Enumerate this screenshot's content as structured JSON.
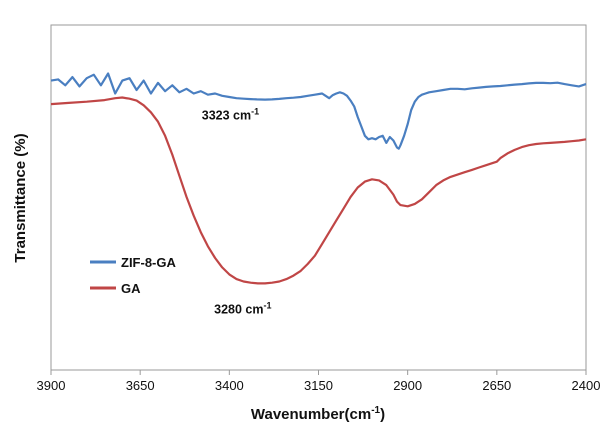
{
  "chart_data": {
    "type": "line",
    "xlabel": "Wavenumber(cm",
    "xlabel_sup": "-1",
    "xlabel_close": ")",
    "ylabel": "Transmittance (%)",
    "xlim": [
      3900,
      2400
    ],
    "x_reversed": true,
    "ylim": [
      0,
      1
    ],
    "y_ticks_shown": false,
    "grid": false,
    "legend_position": "left-middle",
    "xticks": [
      3900,
      3650,
      3400,
      3150,
      2900,
      2650,
      2400
    ],
    "series": [
      {
        "name": "ZIF-8-GA",
        "color": "#4a7fc1",
        "x": [
          3900,
          3880,
          3860,
          3840,
          3820,
          3800,
          3780,
          3760,
          3740,
          3720,
          3700,
          3680,
          3660,
          3640,
          3620,
          3600,
          3580,
          3560,
          3540,
          3520,
          3500,
          3480,
          3460,
          3440,
          3420,
          3400,
          3380,
          3360,
          3340,
          3323,
          3300,
          3280,
          3260,
          3240,
          3220,
          3200,
          3180,
          3160,
          3140,
          3130,
          3120,
          3110,
          3100,
          3090,
          3080,
          3070,
          3060,
          3050,
          3040,
          3030,
          3020,
          3010,
          3000,
          2990,
          2980,
          2970,
          2960,
          2950,
          2940,
          2930,
          2925,
          2920,
          2910,
          2900,
          2890,
          2880,
          2870,
          2860,
          2850,
          2840,
          2820,
          2800,
          2780,
          2760,
          2740,
          2720,
          2700,
          2680,
          2660,
          2640,
          2620,
          2600,
          2580,
          2560,
          2540,
          2520,
          2500,
          2480,
          2460,
          2440,
          2420,
          2400
        ],
        "y": [
          0.955,
          0.96,
          0.935,
          0.97,
          0.93,
          0.965,
          0.98,
          0.935,
          0.985,
          0.9,
          0.955,
          0.965,
          0.915,
          0.955,
          0.9,
          0.945,
          0.91,
          0.935,
          0.905,
          0.92,
          0.9,
          0.91,
          0.895,
          0.9,
          0.89,
          0.885,
          0.88,
          0.878,
          0.876,
          0.875,
          0.874,
          0.875,
          0.877,
          0.88,
          0.882,
          0.885,
          0.89,
          0.895,
          0.9,
          0.89,
          0.88,
          0.893,
          0.9,
          0.905,
          0.9,
          0.89,
          0.87,
          0.845,
          0.8,
          0.76,
          0.72,
          0.705,
          0.71,
          0.705,
          0.715,
          0.72,
          0.69,
          0.715,
          0.7,
          0.67,
          0.665,
          0.68,
          0.72,
          0.77,
          0.83,
          0.865,
          0.885,
          0.895,
          0.9,
          0.905,
          0.91,
          0.915,
          0.92,
          0.92,
          0.918,
          0.922,
          0.925,
          0.928,
          0.93,
          0.932,
          0.935,
          0.938,
          0.94,
          0.943,
          0.945,
          0.945,
          0.944,
          0.946,
          0.94,
          0.935,
          0.93,
          0.94
        ]
      },
      {
        "name": "GA",
        "color": "#c04646",
        "x": [
          3900,
          3850,
          3800,
          3750,
          3720,
          3700,
          3680,
          3660,
          3640,
          3620,
          3600,
          3580,
          3560,
          3540,
          3520,
          3500,
          3480,
          3460,
          3440,
          3420,
          3400,
          3380,
          3360,
          3340,
          3320,
          3300,
          3280,
          3260,
          3240,
          3220,
          3200,
          3180,
          3160,
          3140,
          3120,
          3100,
          3080,
          3060,
          3040,
          3020,
          3000,
          2980,
          2960,
          2940,
          2930,
          2920,
          2900,
          2880,
          2860,
          2840,
          2820,
          2800,
          2780,
          2760,
          2740,
          2720,
          2700,
          2680,
          2660,
          2650,
          2640,
          2620,
          2600,
          2580,
          2560,
          2540,
          2520,
          2500,
          2480,
          2460,
          2440,
          2420,
          2400
        ],
        "y": [
          0.855,
          0.86,
          0.865,
          0.872,
          0.88,
          0.883,
          0.878,
          0.87,
          0.85,
          0.82,
          0.78,
          0.72,
          0.64,
          0.55,
          0.46,
          0.38,
          0.31,
          0.25,
          0.2,
          0.16,
          0.13,
          0.11,
          0.1,
          0.095,
          0.092,
          0.092,
          0.095,
          0.1,
          0.11,
          0.125,
          0.145,
          0.175,
          0.21,
          0.26,
          0.31,
          0.36,
          0.41,
          0.46,
          0.5,
          0.525,
          0.535,
          0.53,
          0.51,
          0.47,
          0.44,
          0.425,
          0.42,
          0.43,
          0.45,
          0.48,
          0.51,
          0.53,
          0.545,
          0.555,
          0.565,
          0.575,
          0.585,
          0.595,
          0.605,
          0.61,
          0.625,
          0.645,
          0.66,
          0.672,
          0.68,
          0.685,
          0.688,
          0.69,
          0.692,
          0.694,
          0.697,
          0.7,
          0.705
        ]
      }
    ],
    "annotations": [
      {
        "text": "3323 cm",
        "sup": "-1",
        "x": 3323,
        "y": 0.875
      },
      {
        "text": "3280 cm",
        "sup": "-1",
        "x": 3280,
        "y": 0.092
      }
    ]
  }
}
